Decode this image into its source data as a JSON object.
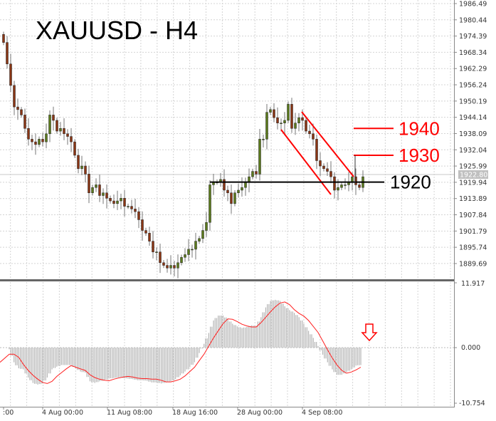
{
  "title": "XAUUSD - H4",
  "price_axis": {
    "labels": [
      "1986.49",
      "1980.44",
      "1974.39",
      "1968.34",
      "1962.29",
      "1956.24",
      "1950.19",
      "1944.14",
      "1938.09",
      "1932.04",
      "1925.99",
      "1919.94",
      "1913.89",
      "1907.84",
      "1901.79",
      "1895.74",
      "1889.69"
    ],
    "current_price": "1922.80"
  },
  "macd_axis": {
    "labels": [
      "11.917",
      "0.000",
      "-10.754"
    ]
  },
  "time_axis": {
    "labels": [
      ":00",
      "4 Aug 00:00",
      "11 Aug 08:00",
      "18 Aug 16:00",
      "28 Aug 00:00",
      "4 Sep 08:00"
    ]
  },
  "levels": [
    {
      "label": "1940",
      "price": 1940,
      "color": "#ff0000"
    },
    {
      "label": "1930",
      "price": 1930,
      "color": "#ff0000"
    },
    {
      "label": "1920",
      "price": 1920,
      "color": "#000000"
    }
  ],
  "colors": {
    "bull": "#5b7a1c",
    "bear": "#8a3514",
    "signal": "#ff2020",
    "histogram": "#b4b4b4",
    "annotation": "#ff0000"
  },
  "chart_data": [
    {
      "type": "candlestick",
      "title": "XAUUSD - H4",
      "ylim": [
        1886,
        1988
      ],
      "closes": [
        1972,
        1964,
        1956,
        1948,
        1947,
        1945,
        1940,
        1936,
        1935,
        1934,
        1936,
        1935,
        1938,
        1945,
        1943,
        1939,
        1940,
        1938,
        1937,
        1935,
        1930,
        1925,
        1926,
        1923,
        1916,
        1918,
        1919,
        1915,
        1916,
        1914,
        1913,
        1912,
        1913,
        1914,
        1911,
        1911,
        1910,
        1909,
        1906,
        1902,
        1901,
        1898,
        1894,
        1894,
        1890,
        1889,
        1888,
        1889,
        1888,
        1890,
        1892,
        1893,
        1895,
        1895,
        1898,
        1899,
        1902,
        1905,
        1919,
        1920,
        1920,
        1921,
        1917,
        1916,
        1912,
        1916,
        1917,
        1918,
        1920,
        1922,
        1924,
        1923,
        1936,
        1936,
        1946,
        1947,
        1944,
        1942,
        1942,
        1943,
        1949,
        1940,
        1942,
        1944,
        1943,
        1939,
        1938,
        1936,
        1928,
        1926,
        1925,
        1924,
        1922,
        1917,
        1918,
        1919,
        1919,
        1920,
        1922,
        1919,
        1918,
        1922
      ]
    },
    {
      "type": "macd",
      "ylim": [
        -10.754,
        11.917
      ],
      "histogram": [
        -0.3,
        -2.7,
        -3.8,
        -4,
        -5.5,
        -6.5,
        -6.8,
        -6.6,
        -5.5,
        -4,
        -3.5,
        -3.2,
        -3.2,
        -3.2,
        -3.8,
        -4.4,
        -4.6,
        -6.2,
        -6.5,
        -6.2,
        -6,
        -5.7,
        -5.6,
        -5.5,
        -5.6,
        -5.7,
        -5.8,
        -6,
        -6,
        -6.1,
        -6.4,
        -6.4,
        -6.6,
        -6.4,
        -6.2,
        -5.8,
        -5.1,
        -4.4,
        -3.6,
        -2.7,
        -1,
        0.7,
        2.7,
        5,
        5.9,
        5.9,
        5.2,
        4.4,
        3.9,
        3.6,
        3.8,
        4.1,
        4,
        5.6,
        7.4,
        8.6,
        8.8,
        8.6,
        7.6,
        6.9,
        6.4,
        5.6,
        4.4,
        3.1,
        1.8,
        0.3,
        -1.3,
        -2.7,
        -4,
        -5,
        -5,
        -4.5,
        -4,
        -3.3,
        -3.2
      ],
      "signal": [
        -1.2,
        -1.2,
        -1.8,
        -3.1,
        -4.2,
        -5.1,
        -5.8,
        -6.4,
        -6.6,
        -6.2,
        -5.3,
        -4.6,
        -3.9,
        -3.3,
        -3.6,
        -3.9,
        -4.2,
        -5.0,
        -5.5,
        -5.8,
        -6.0,
        -6.1,
        -5.8,
        -5.6,
        -5.4,
        -5.3,
        -5.4,
        -5.6,
        -5.7,
        -5.7,
        -5.8,
        -5.8,
        -6.0,
        -6.3,
        -6.3,
        -6.1,
        -5.8,
        -5.2,
        -4.4,
        -3.6,
        -2.4,
        -1.2,
        0.3,
        1.8,
        3.1,
        4.4,
        5.3,
        5.2,
        4.8,
        4.3,
        4.0,
        3.8,
        3.8,
        4.6,
        5.6,
        6.6,
        7.5,
        8.2,
        8.4,
        7.9,
        7.0,
        6.3,
        5.8,
        5.0,
        3.9,
        2.8,
        1.2,
        -0.4,
        -1.9,
        -3.2,
        -4.2,
        -4.7,
        -4.5,
        -4.1,
        -3.6
      ]
    }
  ]
}
